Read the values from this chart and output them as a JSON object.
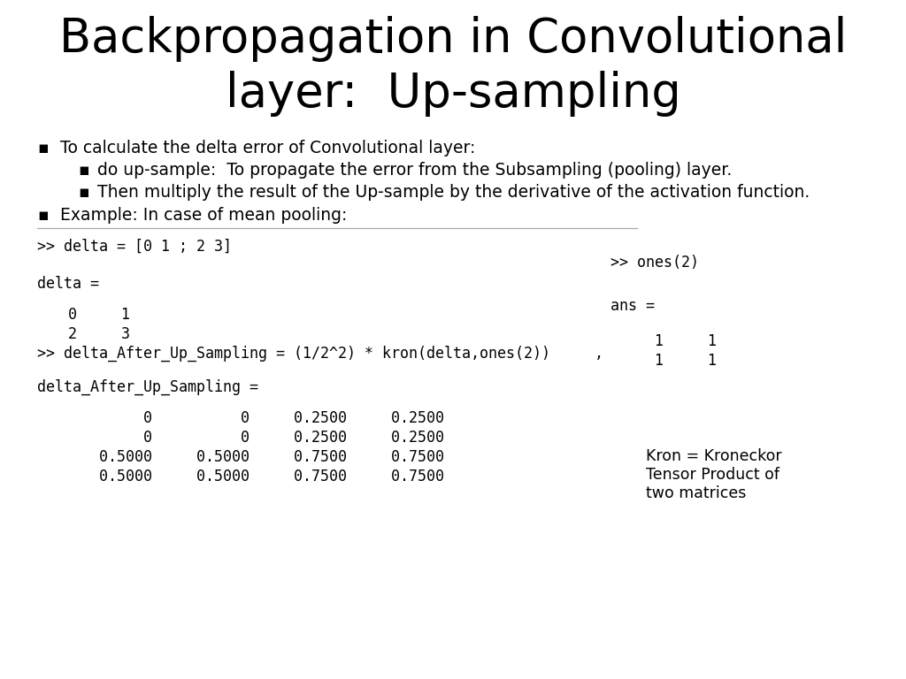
{
  "title_line1": "Backpropagation in Convolutional",
  "title_line2": "layer:  Up-sampling",
  "title_fontsize": 38,
  "bg_color": "#ffffff",
  "bullet1": "To calculate the delta error of Convolutional layer:",
  "bullet1a": "do up-sample:  To propagate the error from the Subsampling (pooling) layer.",
  "bullet1b": "Then multiply the result of the Up-sample by the derivative of the activation function.",
  "bullet2": "Example: In case of mean pooling:",
  "code_line1": ">> delta = [0 1 ; 2 3]",
  "code_right1": ">> ones(2)",
  "code_line2": "delta =",
  "code_right2": "ans =",
  "code_line3": ">> delta_After_Up_Sampling = (1/2^2) * kron(delta,ones(2))",
  "code_comma": ",",
  "code_line4": "delta_After_Up_Sampling =",
  "note_text": "Kron = Kroneckor\nTensor Product of\ntwo matrices",
  "text_color": "#000000",
  "code_color": "#000000",
  "bullet_color": "#000000",
  "line_color": "#aaaaaa",
  "title_color": "#000000"
}
